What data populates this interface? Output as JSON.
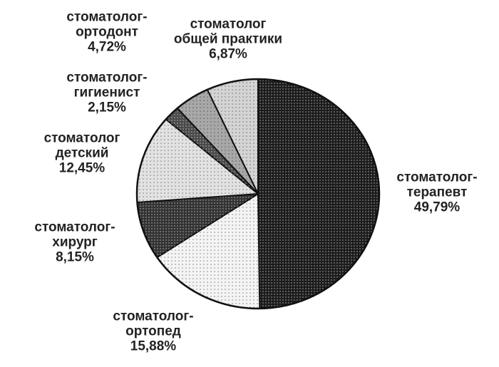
{
  "chart_data": {
    "type": "pie",
    "categories": [
      "стоматолог-терапевт",
      "стоматолог-ортопед",
      "стоматолог-хирург",
      "стоматолог детский",
      "стоматолог-гигиенист",
      "стоматолог-ортодонт",
      "стоматолог общей практики"
    ],
    "values": [
      49.79,
      15.88,
      8.15,
      12.45,
      2.15,
      4.72,
      6.87
    ],
    "value_labels": [
      "49,79%",
      "15,88%",
      "8,15%",
      "12,45%",
      "2,15%",
      "4,72%",
      "6,87%"
    ],
    "colors": [
      "#1c1c1c",
      "#f4f4f4",
      "#333333",
      "#e2e2e2",
      "#4a4a4a",
      "#a8a8a8",
      "#d4d4d4"
    ]
  }
}
